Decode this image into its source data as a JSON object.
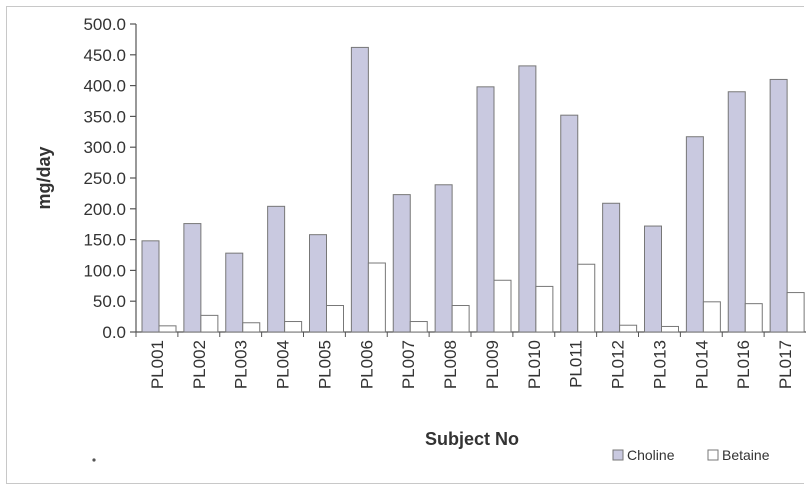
{
  "chart_data": {
    "type": "bar",
    "title": "",
    "xlabel": "Subject No",
    "ylabel": "mg/day",
    "ylim": [
      0,
      500
    ],
    "yticks": [
      "0.0",
      "50.0",
      "100.0",
      "150.0",
      "200.0",
      "250.0",
      "300.0",
      "350.0",
      "400.0",
      "450.0",
      "500.0"
    ],
    "grid": false,
    "legend_position": "bottom-right",
    "categories": [
      "PL001",
      "PL002",
      "PL003",
      "PL004",
      "PL005",
      "PL006",
      "PL007",
      "PL008",
      "PL009",
      "PL010",
      "PL011",
      "PL012",
      "PL013",
      "PL014",
      "PL016",
      "PL017"
    ],
    "series": [
      {
        "name": "Choline",
        "color": "#c9c9e0",
        "values": [
          148,
          176,
          128,
          204,
          158,
          462,
          223,
          239,
          398,
          432,
          352,
          209,
          172,
          317,
          390,
          410
        ]
      },
      {
        "name": "Betaine",
        "color": "#ffffff",
        "values": [
          10,
          27,
          15,
          17,
          43,
          112,
          17,
          43,
          84,
          74,
          110,
          11,
          9,
          49,
          46,
          64
        ]
      }
    ]
  }
}
